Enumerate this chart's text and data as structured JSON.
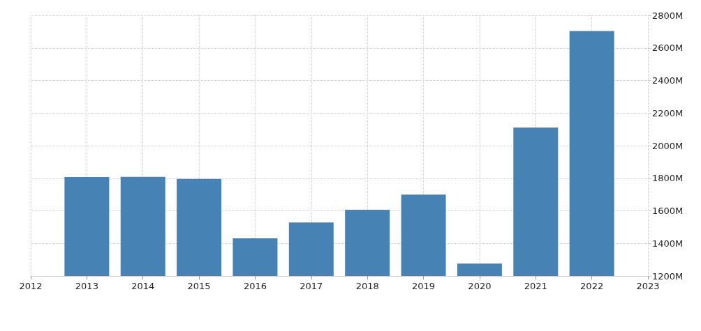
{
  "chart_data": {
    "type": "bar",
    "x": [
      2013,
      2014,
      2015,
      2016,
      2017,
      2018,
      2019,
      2020,
      2021,
      2022
    ],
    "values": [
      1807,
      1809,
      1796,
      1431,
      1528,
      1606,
      1700,
      1276,
      2111,
      2704
    ],
    "color": "#4682b4",
    "xlim": [
      2012,
      2023
    ],
    "xticks": [
      2012,
      2013,
      2014,
      2015,
      2016,
      2017,
      2018,
      2019,
      2020,
      2021,
      2022,
      2023
    ],
    "ylim": [
      1200,
      2800
    ],
    "yticks": [
      {
        "value": 1200,
        "label": "1200M"
      },
      {
        "value": 1400,
        "label": "1400M"
      },
      {
        "value": 1600,
        "label": "1600M"
      },
      {
        "value": 1800,
        "label": "1800M"
      },
      {
        "value": 2000,
        "label": "2000M"
      },
      {
        "value": 2200,
        "label": "2200M"
      },
      {
        "value": 2400,
        "label": "2400M"
      },
      {
        "value": 2600,
        "label": "2600M"
      },
      {
        "value": 2800,
        "label": "2800M"
      }
    ],
    "grid": true
  }
}
